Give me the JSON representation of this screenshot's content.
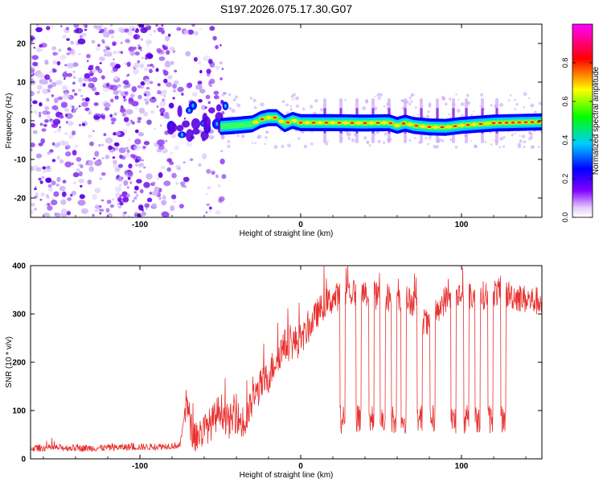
{
  "figure": {
    "title": "S197.2026.075.17.30.G07"
  },
  "chart_data": [
    {
      "type": "heatmap",
      "title": "S197.2026.075.17.30.G07",
      "xlabel": "Height of straight line (km)",
      "ylabel": "Frequency (Hz)",
      "xlim": [
        -168,
        150
      ],
      "ylim": [
        -25,
        25
      ],
      "xticks": [
        -100,
        0,
        100
      ],
      "yticks": [
        -20,
        -10,
        0,
        10,
        20
      ],
      "colorbar": {
        "label": "Normalized spectral amplitude",
        "range": [
          0,
          1
        ],
        "ticks": [
          0.0,
          0.2,
          0.4,
          0.6,
          0.8
        ],
        "colors": [
          "#ffffff",
          "#8000ff",
          "#0000ff",
          "#00ffff",
          "#00ff00",
          "#ffff00",
          "#ff0000",
          "#ff00ff"
        ]
      },
      "trace": {
        "x": [
          -50,
          -40,
          -30,
          -25,
          -20,
          -15,
          -10,
          -5,
          0,
          20,
          40,
          55,
          60,
          65,
          70,
          80,
          90,
          100,
          110,
          120,
          130,
          140,
          150
        ],
        "y": [
          -1.5,
          -1.2,
          -0.8,
          0.3,
          0.8,
          0.8,
          -0.8,
          0.1,
          -0.5,
          -0.5,
          -0.6,
          -0.5,
          -1.2,
          -0.6,
          -1.2,
          -1.6,
          -1.7,
          -1.2,
          -0.9,
          -0.6,
          -0.5,
          -0.4,
          -0.3
        ]
      },
      "noise_region_x": [
        -168,
        -47
      ],
      "spike_x": [
        15,
        25,
        35,
        45,
        55,
        65,
        75,
        85,
        95,
        103,
        113,
        122
      ]
    },
    {
      "type": "line",
      "xlabel": "Height of straight line (km)",
      "ylabel": "SNR (10 * v/v)",
      "xlim": [
        -168,
        150
      ],
      "ylim": [
        0,
        400
      ],
      "xticks": [
        -100,
        0,
        100
      ],
      "yticks": [
        0,
        100,
        200,
        300,
        400
      ],
      "series": [
        {
          "name": "SNR",
          "color": "#e8312f",
          "x": [
            -168,
            -150,
            -130,
            -110,
            -90,
            -75,
            -71,
            -68,
            -65,
            -55,
            -50,
            -45,
            -40,
            -35,
            -30,
            -25,
            -20,
            -15,
            -10,
            -5,
            0,
            5,
            10,
            15,
            20,
            25,
            30,
            40,
            50,
            60,
            65,
            70,
            75,
            80,
            85,
            90,
            95,
            100,
            110,
            120,
            130,
            140,
            150
          ],
          "values": [
            22,
            23,
            22,
            24,
            25,
            28,
            120,
            60,
            45,
            75,
            105,
            75,
            90,
            65,
            120,
            150,
            170,
            210,
            235,
            240,
            245,
            270,
            300,
            320,
            330,
            340,
            345,
            340,
            335,
            335,
            330,
            325,
            295,
            270,
            310,
            330,
            335,
            340,
            335,
            345,
            340,
            330,
            325
          ]
        }
      ],
      "dropouts": {
        "x": [
          26,
          36,
          44,
          51,
          58,
          64,
          74,
          82,
          95,
          103,
          110,
          118,
          126
        ],
        "value": 80
      }
    }
  ]
}
